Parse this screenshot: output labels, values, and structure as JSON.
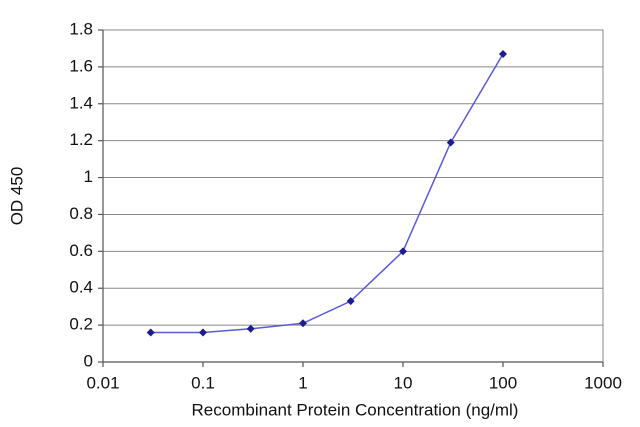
{
  "chart_data": {
    "type": "line",
    "xscale": "log",
    "x": [
      0.03,
      0.1,
      0.3,
      1,
      3,
      10,
      30,
      100
    ],
    "series": [
      {
        "name": "OD 450",
        "color": "#5a5ad6",
        "marker_color": "#1c1c8c",
        "values": [
          0.16,
          0.16,
          0.18,
          0.21,
          0.33,
          0.6,
          1.19,
          1.67
        ]
      }
    ],
    "xlim": [
      0.01,
      1000
    ],
    "xticks": [
      0.01,
      0.1,
      1,
      10,
      100,
      1000
    ],
    "ylim": [
      0,
      1.8
    ],
    "yticks": [
      0,
      0.2,
      0.4,
      0.6,
      0.8,
      1,
      1.2,
      1.4,
      1.6,
      1.8
    ],
    "grid": true,
    "xlabel": "Recombinant Protein Concentration (ng/ml)",
    "ylabel": "OD 450"
  }
}
